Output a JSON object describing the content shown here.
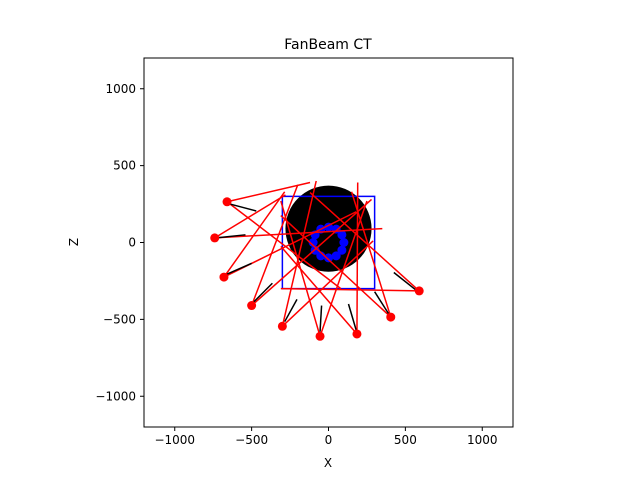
{
  "chart_data": {
    "type": "scatter",
    "title": "FanBeam CT",
    "xlabel": "X",
    "ylabel": "Z",
    "xlim": [
      -1200,
      1200
    ],
    "ylim": [
      -1200,
      1200
    ],
    "xticks": [
      -1000,
      -500,
      0,
      500,
      1000
    ],
    "yticks": [
      -1000,
      -500,
      0,
      500,
      1000
    ],
    "xtick_labels": [
      "−1000",
      "−500",
      "0",
      "500",
      "1000"
    ],
    "ytick_labels": [
      "−1000",
      "−500",
      "0",
      "500",
      "1000"
    ],
    "grid": false,
    "colors": {
      "source": "#ff0000",
      "ray": "#ff0000",
      "detector": "#000000",
      "phantom": "#000000",
      "volume_box": "#0000ff",
      "markers": "#0000ff"
    },
    "volume_box": {
      "x": [
        -300,
        300
      ],
      "z": [
        -300,
        300
      ]
    },
    "phantom": {
      "center": [
        0,
        90
      ],
      "radius": 280
    },
    "ring_markers": {
      "center": [
        0,
        0
      ],
      "radius": 100,
      "points": [
        [
          100,
          0
        ],
        [
          87,
          50
        ],
        [
          50,
          87
        ],
        [
          0,
          100
        ],
        [
          -50,
          87
        ],
        [
          -87,
          50
        ],
        [
          -100,
          0
        ],
        [
          -87,
          -50
        ],
        [
          -50,
          -87
        ],
        [
          0,
          -100
        ],
        [
          50,
          -87
        ],
        [
          87,
          -50
        ]
      ]
    },
    "sources": [
      {
        "x": -660,
        "z": 265,
        "rays": [
          [
            -120,
            390
          ],
          [
            80,
            -300
          ]
        ]
      },
      {
        "x": -740,
        "z": 30,
        "rays": [
          [
            -280,
            310
          ],
          [
            350,
            90
          ]
        ]
      },
      {
        "x": -680,
        "z": -225,
        "rays": [
          [
            -285,
            330
          ],
          [
            180,
            200
          ]
        ]
      },
      {
        "x": -500,
        "z": -410,
        "rays": [
          [
            -200,
            375
          ],
          [
            280,
            280
          ]
        ]
      },
      {
        "x": -300,
        "z": -545,
        "rays": [
          [
            -80,
            400
          ],
          [
            290,
            10
          ]
        ]
      },
      {
        "x": -55,
        "z": -610,
        "rays": [
          [
            -310,
            270
          ],
          [
            250,
            270
          ]
        ]
      },
      {
        "x": 185,
        "z": -595,
        "rays": [
          [
            -310,
            -25
          ],
          [
            190,
            390
          ]
        ]
      },
      {
        "x": 405,
        "z": -485,
        "rays": [
          [
            -310,
            175
          ],
          [
            150,
            330
          ]
        ]
      },
      {
        "x": 590,
        "z": -315,
        "rays": [
          [
            -310,
            -300
          ],
          [
            -120,
            325
          ]
        ]
      }
    ],
    "detectors": [
      {
        "x1": -640,
        "z1": 250,
        "x2": -470,
        "z2": 205
      },
      {
        "x1": -730,
        "z1": 30,
        "x2": -540,
        "z2": 50
      },
      {
        "x1": -670,
        "z1": -210,
        "x2": -500,
        "z2": -135
      },
      {
        "x1": -485,
        "z1": -385,
        "x2": -365,
        "z2": -265
      },
      {
        "x1": -285,
        "z1": -515,
        "x2": -205,
        "z2": -370
      },
      {
        "x1": -55,
        "z1": -580,
        "x2": -45,
        "z2": -410
      },
      {
        "x1": 180,
        "z1": -570,
        "x2": 130,
        "z2": -400
      },
      {
        "x1": 395,
        "z1": -470,
        "x2": 300,
        "z2": -320
      },
      {
        "x1": 570,
        "z1": -310,
        "x2": 425,
        "z2": -195
      }
    ]
  }
}
